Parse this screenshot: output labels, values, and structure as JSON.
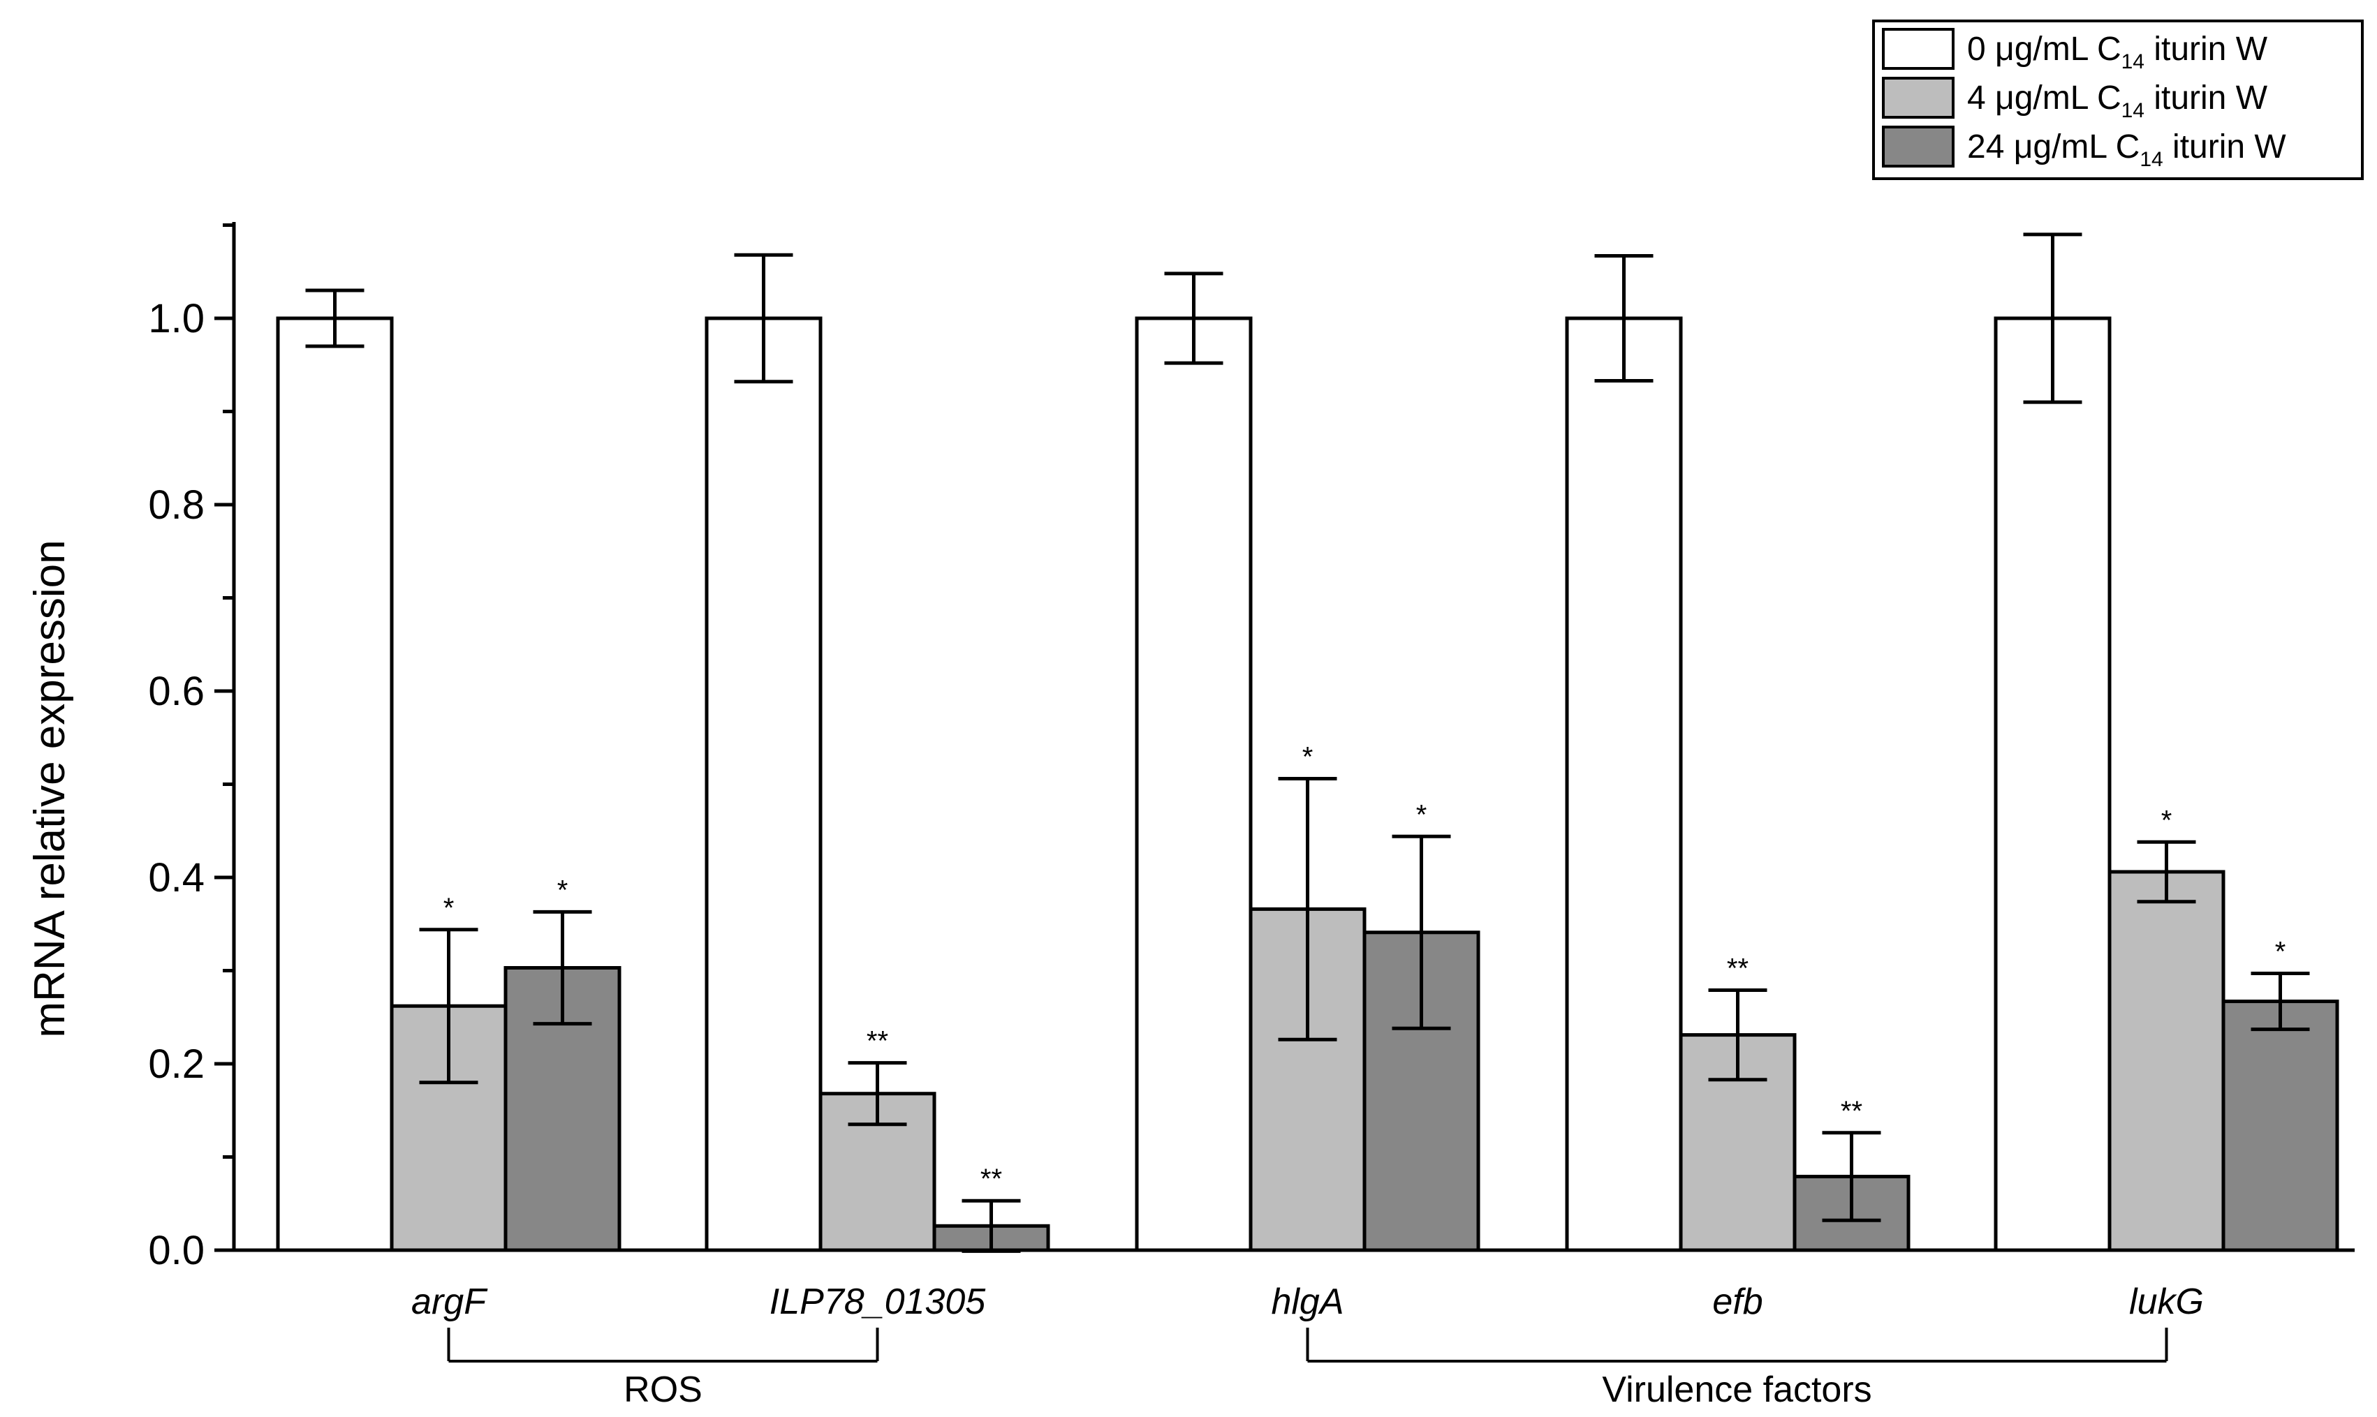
{
  "chart_data": {
    "type": "bar",
    "ylabel": "mRNA relative  expression",
    "xlabel": "",
    "ylim": [
      0,
      1.1
    ],
    "yticks": [
      "0.0",
      "0.2",
      "0.4",
      "0.6",
      "0.8",
      "1.0"
    ],
    "categories": [
      "argF",
      "ILP78_01305",
      "hlgA",
      "efb",
      "lukG"
    ],
    "series": [
      {
        "name_prefix": "0 μg/mL C",
        "name_sub": "14",
        "name_suffix": " iturin W",
        "color": "#ffffff",
        "values": [
          1.0,
          1.0,
          1.0,
          1.0,
          1.0
        ],
        "errors": [
          0.03,
          0.068,
          0.048,
          0.067,
          0.09
        ],
        "significance": [
          "",
          "",
          "",
          "",
          ""
        ]
      },
      {
        "name_prefix": "4 μg/mL C",
        "name_sub": "14",
        "name_suffix": " iturin W",
        "color": "#bdbdbd",
        "values": [
          0.262,
          0.168,
          0.366,
          0.231,
          0.406
        ],
        "errors": [
          0.082,
          0.033,
          0.14,
          0.048,
          0.032
        ],
        "significance": [
          "*",
          "**",
          "*",
          "**",
          "*"
        ]
      },
      {
        "name_prefix": "24 μg/mL C",
        "name_sub": "14",
        "name_suffix": " iturin W",
        "color": "#878787",
        "values": [
          0.303,
          0.026,
          0.341,
          0.079,
          0.267
        ],
        "errors": [
          0.06,
          0.027,
          0.103,
          0.047,
          0.03
        ],
        "significance": [
          "*",
          "**",
          "*",
          "**",
          "*"
        ]
      }
    ],
    "groups": [
      {
        "label": "ROS",
        "from": 0,
        "to": 1
      },
      {
        "label": "Virulence factors",
        "from": 2,
        "to": 4
      }
    ],
    "legend_position": "top-right"
  }
}
